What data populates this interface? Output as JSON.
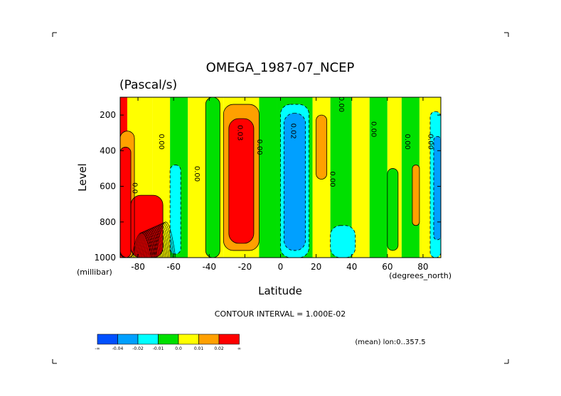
{
  "chart_data": {
    "type": "heatmap",
    "title": "OMEGA_1987-07_NCEP",
    "units": "(Pascal/s)",
    "xlabel": "Latitude",
    "ylabel": "Level",
    "y_units_label": "(millibar)",
    "x_units_label": "(degrees_north)",
    "xlim": [
      -90,
      90
    ],
    "ylim": [
      1000,
      100
    ],
    "x_ticks": [
      {
        "value": -80,
        "label": "-80"
      },
      {
        "value": -60,
        "label": "-60"
      },
      {
        "value": -40,
        "label": "-40"
      },
      {
        "value": -20,
        "label": "-20"
      },
      {
        "value": 0,
        "label": "0"
      },
      {
        "value": 20,
        "label": "20"
      },
      {
        "value": 40,
        "label": "40"
      },
      {
        "value": 60,
        "label": "60"
      },
      {
        "value": 80,
        "label": "80"
      }
    ],
    "y_ticks": [
      {
        "value": 200,
        "label": "200"
      },
      {
        "value": 400,
        "label": "400"
      },
      {
        "value": 600,
        "label": "600"
      },
      {
        "value": 800,
        "label": "800"
      },
      {
        "value": 1000,
        "label": "1000"
      }
    ],
    "contour_interval_text": "CONTOUR INTERVAL = 1.000E-02",
    "subtitle_right": "(mean) lon:0..357.5",
    "colorbar": {
      "colors": [
        "#0050ff",
        "#00a0ff",
        "#00ffff",
        "#00e000",
        "#ffff00",
        "#ffa000",
        "#ff0000"
      ],
      "labels": [
        "-∞",
        "-0.04",
        "-0.02",
        "-0.01",
        "0.0",
        "0.01",
        "0.02",
        "∞"
      ]
    },
    "contour_labels": [
      {
        "lat": -83,
        "p": 610,
        "text": "0.0"
      },
      {
        "lat": -68,
        "p": 350,
        "text": "0.00"
      },
      {
        "lat": -48,
        "p": 530,
        "text": "0.00"
      },
      {
        "lat": -24,
        "p": 300,
        "text": "0.03"
      },
      {
        "lat": -13,
        "p": 380,
        "text": "0.00"
      },
      {
        "lat": 6,
        "p": 290,
        "text": "0.02"
      },
      {
        "lat": 28,
        "p": 560,
        "text": "0.00"
      },
      {
        "lat": 33,
        "p": 140,
        "text": "0.00"
      },
      {
        "lat": 51,
        "p": 280,
        "text": "0.00"
      },
      {
        "lat": 70,
        "p": 350,
        "text": "0.00"
      },
      {
        "lat": 83,
        "p": 350,
        "text": "0.00"
      }
    ],
    "bands": [
      {
        "lat_from": -90,
        "lat_to": -86,
        "color": "#ff0000"
      },
      {
        "lat_from": -86,
        "lat_to": -72,
        "color": "#ffff00"
      },
      {
        "lat_from": -72,
        "lat_to": -62,
        "color": "#ffff00"
      },
      {
        "lat_from": -62,
        "lat_to": -52,
        "color": "#00e000"
      },
      {
        "lat_from": -52,
        "lat_to": -32,
        "color": "#ffff00"
      },
      {
        "lat_from": -32,
        "lat_to": -12,
        "color": "#ffff00"
      },
      {
        "lat_from": -12,
        "lat_to": -2,
        "color": "#00e000"
      },
      {
        "lat_from": -2,
        "lat_to": 18,
        "color": "#00e000"
      },
      {
        "lat_from": 18,
        "lat_to": 28,
        "color": "#ffff00"
      },
      {
        "lat_from": 28,
        "lat_to": 40,
        "color": "#00e000"
      },
      {
        "lat_from": 40,
        "lat_to": 50,
        "color": "#ffff00"
      },
      {
        "lat_from": 50,
        "lat_to": 60,
        "color": "#00e000"
      },
      {
        "lat_from": 60,
        "lat_to": 68,
        "color": "#ffff00"
      },
      {
        "lat_from": 68,
        "lat_to": 78,
        "color": "#00e000"
      },
      {
        "lat_from": 78,
        "lat_to": 90,
        "color": "#ffff00"
      }
    ],
    "blobs": [
      {
        "lat_from": -90,
        "lat_to": -82,
        "p_from": 290,
        "p_to": 1000,
        "color": "#ffa000"
      },
      {
        "lat_from": -90,
        "lat_to": -84,
        "p_from": 380,
        "p_to": 1000,
        "color": "#ff0000"
      },
      {
        "lat_from": -84,
        "lat_to": -66,
        "p_from": 650,
        "p_to": 1000,
        "color": "#ff0000"
      },
      {
        "lat_from": -62,
        "lat_to": -56,
        "p_from": 480,
        "p_to": 980,
        "color": "#00ffff"
      },
      {
        "lat_from": -42,
        "lat_to": -34,
        "p_from": 100,
        "p_to": 1000,
        "color": "#00e000"
      },
      {
        "lat_from": -32,
        "lat_to": -12,
        "p_from": 140,
        "p_to": 960,
        "color": "#ffa000"
      },
      {
        "lat_from": -29,
        "lat_to": -15,
        "p_from": 220,
        "p_to": 920,
        "color": "#ff0000"
      },
      {
        "lat_from": 0,
        "lat_to": 16,
        "p_from": 140,
        "p_to": 1000,
        "color": "#00ffff"
      },
      {
        "lat_from": 2,
        "lat_to": 14,
        "p_from": 190,
        "p_to": 960,
        "color": "#00a0ff"
      },
      {
        "lat_from": 20,
        "lat_to": 26,
        "p_from": 200,
        "p_to": 560,
        "color": "#ffa000"
      },
      {
        "lat_from": 28,
        "lat_to": 42,
        "p_from": 820,
        "p_to": 1000,
        "color": "#00ffff"
      },
      {
        "lat_from": 60,
        "lat_to": 66,
        "p_from": 500,
        "p_to": 960,
        "color": "#00e000"
      },
      {
        "lat_from": 74,
        "lat_to": 78,
        "p_from": 480,
        "p_to": 820,
        "color": "#ffa000"
      },
      {
        "lat_from": 84,
        "lat_to": 90,
        "p_from": 180,
        "p_to": 1000,
        "color": "#00ffff"
      },
      {
        "lat_from": 86,
        "lat_to": 90,
        "p_from": 320,
        "p_to": 900,
        "color": "#00a0ff"
      }
    ]
  }
}
